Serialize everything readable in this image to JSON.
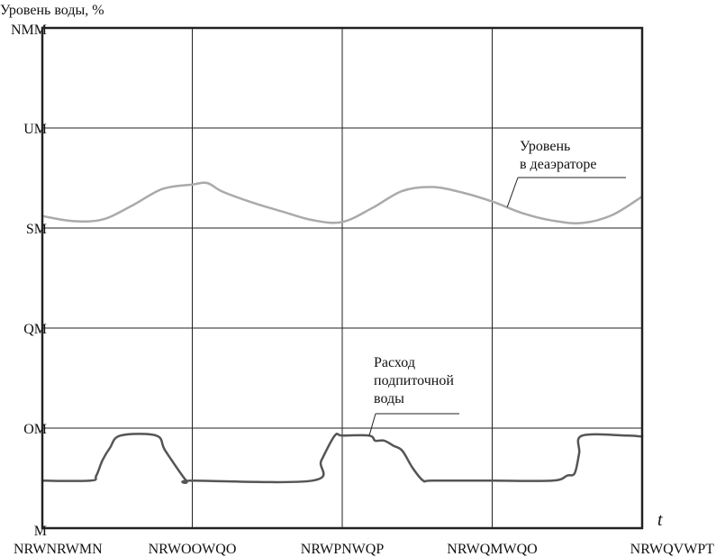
{
  "chart_data": {
    "type": "line",
    "title": "",
    "ylabel": "Уровень воды, %",
    "xlabel": "t",
    "ylim": [
      0,
      100
    ],
    "xlim": [
      0,
      4
    ],
    "x_tick_labels": [
      "NRWNRWMN",
      "NRWOOWQO",
      "NRWPNWQP",
      "NRWQMWQO",
      "NRWQVWPT"
    ],
    "y_tick_labels": [
      "M",
      "OM",
      "QM",
      "SM",
      "UM",
      "NMM"
    ],
    "y_ticks": [
      0,
      20,
      40,
      60,
      80,
      100
    ],
    "grid": true,
    "series": [
      {
        "name": "Уровень в деаэраторе",
        "color": "#aaaaaa",
        "x": [
          0,
          0.2,
          0.4,
          0.6,
          0.8,
          1.0,
          1.1,
          1.2,
          1.4,
          1.6,
          1.8,
          2.0,
          2.2,
          2.4,
          2.6,
          2.8,
          3.0,
          3.2,
          3.4,
          3.6,
          3.8,
          4.0
        ],
        "values": [
          62.4,
          61.4,
          61.7,
          64.5,
          67.8,
          68.7,
          69.0,
          67.3,
          65.1,
          63.3,
          61.6,
          61.2,
          64.0,
          67.4,
          68.2,
          67.1,
          65.3,
          63.0,
          61.5,
          61.0,
          62.6,
          66.3
        ]
      },
      {
        "name": "Расход подпиточной воды",
        "color": "#555555",
        "x": [
          0,
          0.32,
          0.36,
          0.4,
          0.45,
          0.52,
          0.76,
          0.82,
          0.96,
          1.0,
          1.8,
          1.86,
          1.95,
          2.0,
          2.18,
          2.22,
          2.28,
          2.34,
          2.4,
          2.47,
          2.54,
          2.6,
          3.0,
          3.4,
          3.5,
          3.55,
          3.58,
          3.6,
          3.9,
          4.0
        ],
        "values": [
          9.5,
          9.5,
          10.5,
          13.5,
          16.0,
          18.5,
          18.5,
          15.5,
          9.5,
          9.5,
          9.5,
          13.5,
          18.5,
          18.5,
          18.5,
          17.5,
          17.5,
          16.5,
          15.5,
          12.0,
          9.5,
          9.5,
          9.5,
          9.5,
          10.5,
          11.0,
          15.0,
          18.5,
          18.5,
          18.3
        ]
      }
    ],
    "annotations": [
      {
        "lines": [
          "Уровень",
          "в деаэраторе"
        ],
        "series": 0,
        "at_x": 3.1
      },
      {
        "lines": [
          "Расход",
          "подпиточной",
          "воды"
        ],
        "series": 1,
        "at_x": 2.18
      }
    ]
  }
}
